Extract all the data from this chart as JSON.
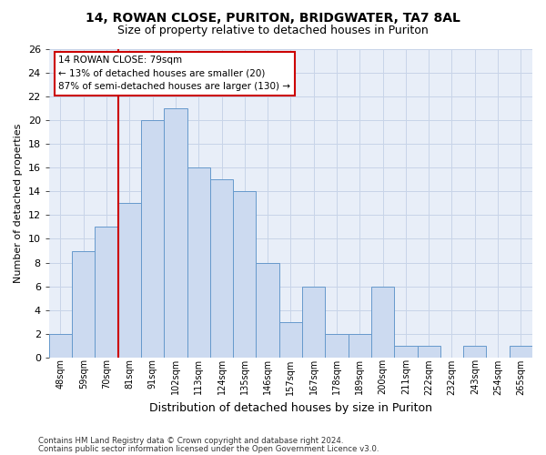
{
  "title1": "14, ROWAN CLOSE, PURITON, BRIDGWATER, TA7 8AL",
  "title2": "Size of property relative to detached houses in Puriton",
  "xlabel": "Distribution of detached houses by size in Puriton",
  "ylabel": "Number of detached properties",
  "categories": [
    "48sqm",
    "59sqm",
    "70sqm",
    "81sqm",
    "91sqm",
    "102sqm",
    "113sqm",
    "124sqm",
    "135sqm",
    "146sqm",
    "157sqm",
    "167sqm",
    "178sqm",
    "189sqm",
    "200sqm",
    "211sqm",
    "222sqm",
    "232sqm",
    "243sqm",
    "254sqm",
    "265sqm"
  ],
  "values": [
    2,
    9,
    11,
    13,
    20,
    21,
    16,
    15,
    14,
    8,
    3,
    6,
    2,
    2,
    6,
    1,
    1,
    0,
    1,
    0,
    1
  ],
  "bar_color": "#ccdaf0",
  "bar_edge_color": "#6699cc",
  "red_line_x": 3.0,
  "red_line_color": "#cc0000",
  "ylim": [
    0,
    26
  ],
  "yticks": [
    0,
    2,
    4,
    6,
    8,
    10,
    12,
    14,
    16,
    18,
    20,
    22,
    24,
    26
  ],
  "annotation_line1": "14 ROWAN CLOSE: 79sqm",
  "annotation_line2": "← 13% of detached houses are smaller (20)",
  "annotation_line3": "87% of semi-detached houses are larger (130) →",
  "annotation_box_color": "#ffffff",
  "annotation_box_edge_color": "#cc0000",
  "footer1": "Contains HM Land Registry data © Crown copyright and database right 2024.",
  "footer2": "Contains public sector information licensed under the Open Government Licence v3.0.",
  "grid_color": "#c8d4e8",
  "background_color": "#e8eef8",
  "fig_bg_color": "#ffffff",
  "title1_fontsize": 10,
  "title2_fontsize": 9,
  "xlabel_fontsize": 9,
  "ylabel_fontsize": 8
}
